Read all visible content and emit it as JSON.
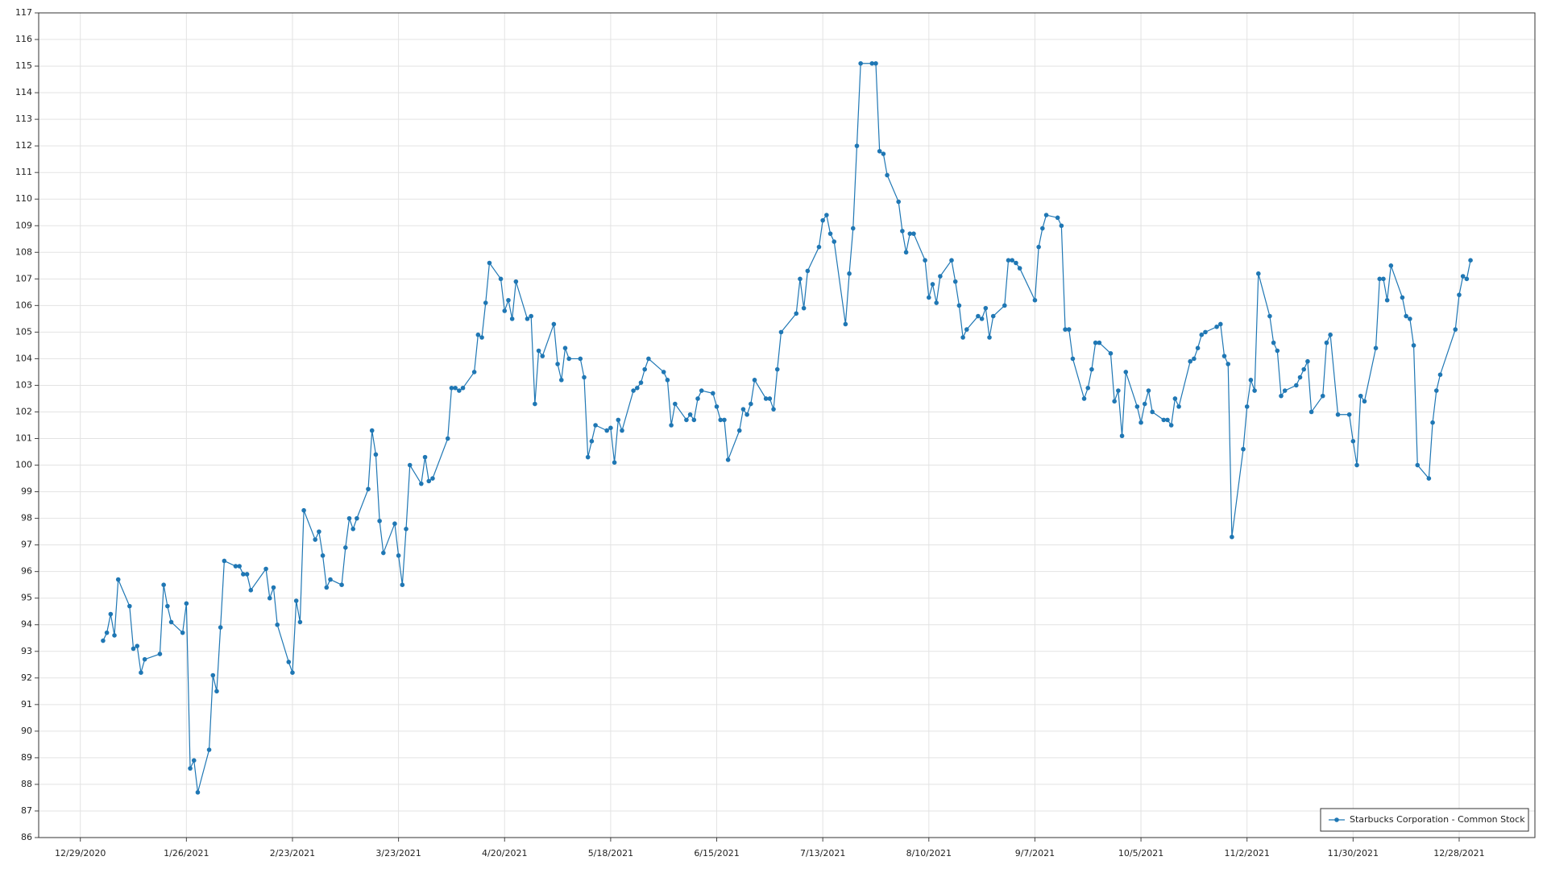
{
  "chart_data": {
    "type": "line",
    "x": [
      "1/4/2021",
      "1/5/2021",
      "1/6/2021",
      "1/7/2021",
      "1/8/2021",
      "1/11/2021",
      "1/12/2021",
      "1/13/2021",
      "1/14/2021",
      "1/15/2021",
      "1/19/2021",
      "1/20/2021",
      "1/21/2021",
      "1/22/2021",
      "1/25/2021",
      "1/26/2021",
      "1/27/2021",
      "1/28/2021",
      "1/29/2021",
      "2/1/2021",
      "2/2/2021",
      "2/3/2021",
      "2/4/2021",
      "2/5/2021",
      "2/8/2021",
      "2/9/2021",
      "2/10/2021",
      "2/11/2021",
      "2/12/2021",
      "2/16/2021",
      "2/17/2021",
      "2/18/2021",
      "2/19/2021",
      "2/22/2021",
      "2/23/2021",
      "2/24/2021",
      "2/25/2021",
      "2/26/2021",
      "3/1/2021",
      "3/2/2021",
      "3/3/2021",
      "3/4/2021",
      "3/5/2021",
      "3/8/2021",
      "3/9/2021",
      "3/10/2021",
      "3/11/2021",
      "3/12/2021",
      "3/15/2021",
      "3/16/2021",
      "3/17/2021",
      "3/18/2021",
      "3/19/2021",
      "3/22/2021",
      "3/23/2021",
      "3/24/2021",
      "3/25/2021",
      "3/26/2021",
      "3/29/2021",
      "3/30/2021",
      "3/31/2021",
      "4/1/2021",
      "4/5/2021",
      "4/6/2021",
      "4/7/2021",
      "4/8/2021",
      "4/9/2021",
      "4/12/2021",
      "4/13/2021",
      "4/14/2021",
      "4/15/2021",
      "4/16/2021",
      "4/19/2021",
      "4/20/2021",
      "4/21/2021",
      "4/22/2021",
      "4/23/2021",
      "4/26/2021",
      "4/27/2021",
      "4/28/2021",
      "4/29/2021",
      "4/30/2021",
      "5/3/2021",
      "5/4/2021",
      "5/5/2021",
      "5/6/2021",
      "5/7/2021",
      "5/10/2021",
      "5/11/2021",
      "5/12/2021",
      "5/13/2021",
      "5/14/2021",
      "5/17/2021",
      "5/18/2021",
      "5/19/2021",
      "5/20/2021",
      "5/21/2021",
      "5/24/2021",
      "5/25/2021",
      "5/26/2021",
      "5/27/2021",
      "5/28/2021",
      "6/1/2021",
      "6/2/2021",
      "6/3/2021",
      "6/4/2021",
      "6/7/2021",
      "6/8/2021",
      "6/9/2021",
      "6/10/2021",
      "6/11/2021",
      "6/14/2021",
      "6/15/2021",
      "6/16/2021",
      "6/17/2021",
      "6/18/2021",
      "6/21/2021",
      "6/22/2021",
      "6/23/2021",
      "6/24/2021",
      "6/25/2021",
      "6/28/2021",
      "6/29/2021",
      "6/30/2021",
      "7/1/2021",
      "7/2/2021",
      "7/6/2021",
      "7/7/2021",
      "7/8/2021",
      "7/9/2021",
      "7/12/2021",
      "7/13/2021",
      "7/14/2021",
      "7/15/2021",
      "7/16/2021",
      "7/19/2021",
      "7/20/2021",
      "7/21/2021",
      "7/22/2021",
      "7/23/2021",
      "7/26/2021",
      "7/27/2021",
      "7/28/2021",
      "7/29/2021",
      "7/30/2021",
      "8/2/2021",
      "8/3/2021",
      "8/4/2021",
      "8/5/2021",
      "8/6/2021",
      "8/9/2021",
      "8/10/2021",
      "8/11/2021",
      "8/12/2021",
      "8/13/2021",
      "8/16/2021",
      "8/17/2021",
      "8/18/2021",
      "8/19/2021",
      "8/20/2021",
      "8/23/2021",
      "8/24/2021",
      "8/25/2021",
      "8/26/2021",
      "8/27/2021",
      "8/30/2021",
      "8/31/2021",
      "9/1/2021",
      "9/2/2021",
      "9/3/2021",
      "9/7/2021",
      "9/8/2021",
      "9/9/2021",
      "9/10/2021",
      "9/13/2021",
      "9/14/2021",
      "9/15/2021",
      "9/16/2021",
      "9/17/2021",
      "9/20/2021",
      "9/21/2021",
      "9/22/2021",
      "9/23/2021",
      "9/24/2021",
      "9/27/2021",
      "9/28/2021",
      "9/29/2021",
      "9/30/2021",
      "10/1/2021",
      "10/4/2021",
      "10/5/2021",
      "10/6/2021",
      "10/7/2021",
      "10/8/2021",
      "10/11/2021",
      "10/12/2021",
      "10/13/2021",
      "10/14/2021",
      "10/15/2021",
      "10/18/2021",
      "10/19/2021",
      "10/20/2021",
      "10/21/2021",
      "10/22/2021",
      "10/25/2021",
      "10/26/2021",
      "10/27/2021",
      "10/28/2021",
      "10/29/2021",
      "11/1/2021",
      "11/2/2021",
      "11/3/2021",
      "11/4/2021",
      "11/5/2021",
      "11/8/2021",
      "11/9/2021",
      "11/10/2021",
      "11/11/2021",
      "11/12/2021",
      "11/15/2021",
      "11/16/2021",
      "11/17/2021",
      "11/18/2021",
      "11/19/2021",
      "11/22/2021",
      "11/23/2021",
      "11/24/2021",
      "11/26/2021",
      "11/29/2021",
      "11/30/2021",
      "12/1/2021",
      "12/2/2021",
      "12/3/2021",
      "12/6/2021",
      "12/7/2021",
      "12/8/2021",
      "12/9/2021",
      "12/10/2021",
      "12/13/2021",
      "12/14/2021",
      "12/15/2021",
      "12/16/2021",
      "12/17/2021",
      "12/20/2021",
      "12/21/2021",
      "12/22/2021",
      "12/23/2021",
      "12/27/2021",
      "12/28/2021",
      "12/29/2021",
      "12/30/2021",
      "12/31/2021"
    ],
    "series": [
      {
        "name": "Starbucks Corporation - Common Stock",
        "color": "#1f77b4",
        "values": [
          93.4,
          93.7,
          94.4,
          93.6,
          95.7,
          94.7,
          93.1,
          93.2,
          92.2,
          92.7,
          92.9,
          95.5,
          94.7,
          94.1,
          93.7,
          94.8,
          88.6,
          88.9,
          87.7,
          89.3,
          92.1,
          91.5,
          93.9,
          96.4,
          96.2,
          96.2,
          95.9,
          95.9,
          95.3,
          96.1,
          95.0,
          95.4,
          94.0,
          92.6,
          92.2,
          94.9,
          94.1,
          98.3,
          97.2,
          97.5,
          96.6,
          95.4,
          95.7,
          95.5,
          96.9,
          98.0,
          97.6,
          98.0,
          99.1,
          101.3,
          100.4,
          97.9,
          96.7,
          97.8,
          96.6,
          95.5,
          97.6,
          100.0,
          99.3,
          100.3,
          99.4,
          99.5,
          101.0,
          102.9,
          102.9,
          102.8,
          102.9,
          103.5,
          104.9,
          104.8,
          106.1,
          107.6,
          107.0,
          105.8,
          106.2,
          105.5,
          106.9,
          105.5,
          105.6,
          102.3,
          104.3,
          104.1,
          105.3,
          103.8,
          103.2,
          104.4,
          104.0,
          104.0,
          103.3,
          100.3,
          100.9,
          101.5,
          101.3,
          101.4,
          100.1,
          101.7,
          101.3,
          102.8,
          102.9,
          103.1,
          103.6,
          104.0,
          103.5,
          103.2,
          101.5,
          102.3,
          101.7,
          101.9,
          101.7,
          102.5,
          102.8,
          102.7,
          102.2,
          101.7,
          101.7,
          100.2,
          101.3,
          102.1,
          101.9,
          102.3,
          103.2,
          102.5,
          102.5,
          102.1,
          103.6,
          105.0,
          105.7,
          107.0,
          105.9,
          107.3,
          108.2,
          109.2,
          109.4,
          108.7,
          108.4,
          105.3,
          107.2,
          108.9,
          112.0,
          115.1,
          115.1,
          115.1,
          111.8,
          111.7,
          110.9,
          109.9,
          108.8,
          108.0,
          108.7,
          108.7,
          107.7,
          106.3,
          106.8,
          106.1,
          107.1,
          107.7,
          106.9,
          106.0,
          104.8,
          105.1,
          105.6,
          105.5,
          105.9,
          104.8,
          105.6,
          106.0,
          107.7,
          107.7,
          107.6,
          107.4,
          106.2,
          108.2,
          108.9,
          109.4,
          109.3,
          109.0,
          105.1,
          105.1,
          104.0,
          102.5,
          102.9,
          103.6,
          104.6,
          104.6,
          104.2,
          102.4,
          102.8,
          101.1,
          103.5,
          102.2,
          101.6,
          102.3,
          102.8,
          102.0,
          101.7,
          101.7,
          101.5,
          102.5,
          102.2,
          103.9,
          104.0,
          104.4,
          104.9,
          105.0,
          105.2,
          105.3,
          104.1,
          103.8,
          97.3,
          100.6,
          102.2,
          103.2,
          102.8,
          107.2,
          105.6,
          104.6,
          104.3,
          102.6,
          102.8,
          103.0,
          103.3,
          103.6,
          103.9,
          102.0,
          102.6,
          104.6,
          104.9,
          101.9,
          101.9,
          100.9,
          100.0,
          102.6,
          102.4,
          104.4,
          107.0,
          107.0,
          106.2,
          107.5,
          106.3,
          105.6,
          105.5,
          104.5,
          100.0,
          99.5,
          101.6,
          102.8,
          103.4,
          105.1,
          106.4,
          107.1,
          107.0,
          107.7
        ]
      }
    ],
    "xlim": [
      "12/18/2020",
      "1/17/2022"
    ],
    "xticks": [
      "12/29/2020",
      "1/26/2021",
      "2/23/2021",
      "3/23/2021",
      "4/20/2021",
      "5/18/2021",
      "6/15/2021",
      "7/13/2021",
      "8/10/2021",
      "9/7/2021",
      "10/5/2021",
      "11/2/2021",
      "11/30/2021",
      "12/28/2021"
    ],
    "ylim": [
      86,
      117
    ],
    "yticks": [
      86,
      87,
      88,
      89,
      90,
      91,
      92,
      93,
      94,
      95,
      96,
      97,
      98,
      99,
      100,
      101,
      102,
      103,
      104,
      105,
      106,
      107,
      108,
      109,
      110,
      111,
      112,
      113,
      114,
      115,
      116,
      117
    ],
    "grid": true,
    "legend": "lower right"
  }
}
